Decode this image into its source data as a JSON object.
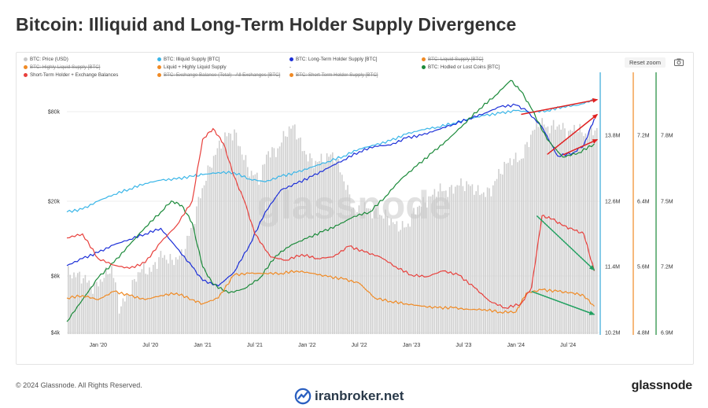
{
  "page": {
    "title": "Bitcoin: Illiquid and Long-Term Holder Supply Divergence",
    "copyright": "© 2024 Glassnode. All Rights Reserved.",
    "brand": "glassnode",
    "watermark": "glassnode",
    "corner_watermark": "iranbroker.net"
  },
  "toolbar": {
    "reset_label": "Reset zoom",
    "camera_icon": "camera-icon"
  },
  "legend": [
    {
      "label": "BTC: Price (USD)",
      "color": "#c8c8c8",
      "enabled": true
    },
    {
      "label": "BTC: Illiquid Supply [BTC]",
      "color": "#3ab6e8",
      "enabled": true
    },
    {
      "label": "BTC: Long-Term Holder Supply [BTC]",
      "color": "#1c2fd8",
      "enabled": true
    },
    {
      "label": "BTC: Liquid Supply [BTC]",
      "color": "#f08a24",
      "enabled": false
    },
    {
      "label": "BTC: Highly Liquid Supply [BTC]",
      "color": "#f08a24",
      "enabled": false
    },
    {
      "label": "Liquid + Highly Liquid Supply",
      "color": "#f08a24",
      "enabled": true
    },
    {
      "label": "-",
      "color": "",
      "enabled": true
    },
    {
      "label": "BTC: Hodled or Lost Coins [BTC]",
      "color": "#1b8a3a",
      "enabled": true
    },
    {
      "label": "Short-Term Holder + Exchange Balances",
      "color": "#e8403c",
      "enabled": true
    },
    {
      "label": "BTC: Exchange Balance (Total) - All Exchanges [BTC]",
      "color": "#f08a24",
      "enabled": false
    },
    {
      "label": "BTC: Short-Term Holder Supply [BTC]",
      "color": "#f08a24",
      "enabled": false
    }
  ],
  "chart_data": {
    "type": "line",
    "x_ticks": [
      "Jan '20",
      "Jul '20",
      "Jan '21",
      "Jul '21",
      "Jan '22",
      "Jul '22",
      "Jan '23",
      "Jul '23",
      "Jan '24",
      "Jul '24"
    ],
    "x_range": [
      "2019-09",
      "2024-10"
    ],
    "price_axis": {
      "ticks": [
        "$80k",
        "$20k",
        "$8k",
        "$4k"
      ],
      "scale": "log"
    },
    "axis_1": {
      "ticks": [
        "13.8M",
        "12.6M",
        "11.4M",
        "10.2M"
      ],
      "color": "#36a8d8"
    },
    "axis_2": {
      "ticks": [
        "7.2M",
        "6.4M",
        "5.6M",
        "4.8M"
      ],
      "color": "#f08a24"
    },
    "axis_3": {
      "ticks": [
        "7.8M",
        "7.5M",
        "7.2M",
        "6.9M"
      ],
      "color": "#1b8a3a"
    },
    "series": [
      {
        "name": "BTC: Price (USD)",
        "color": "#c8c8c8",
        "style": "bars",
        "points": [
          [
            2019.7,
            9000
          ],
          [
            2019.85,
            8500
          ],
          [
            2019.95,
            7300
          ],
          [
            2020.05,
            8500
          ],
          [
            2020.12,
            9700
          ],
          [
            2020.2,
            5500
          ],
          [
            2020.3,
            7000
          ],
          [
            2020.4,
            9500
          ],
          [
            2020.5,
            9200
          ],
          [
            2020.6,
            11500
          ],
          [
            2020.7,
            10500
          ],
          [
            2020.8,
            11500
          ],
          [
            2020.9,
            17000
          ],
          [
            2021.0,
            29000
          ],
          [
            2021.08,
            40000
          ],
          [
            2021.15,
            50000
          ],
          [
            2021.22,
            58000
          ],
          [
            2021.3,
            60000
          ],
          [
            2021.38,
            44000
          ],
          [
            2021.45,
            35000
          ],
          [
            2021.55,
            32000
          ],
          [
            2021.62,
            47000
          ],
          [
            2021.7,
            46000
          ],
          [
            2021.8,
            61000
          ],
          [
            2021.87,
            66000
          ],
          [
            2021.95,
            48000
          ],
          [
            2022.05,
            40000
          ],
          [
            2022.15,
            42000
          ],
          [
            2022.25,
            45000
          ],
          [
            2022.35,
            31000
          ],
          [
            2022.45,
            20000
          ],
          [
            2022.55,
            22000
          ],
          [
            2022.65,
            20000
          ],
          [
            2022.75,
            19500
          ],
          [
            2022.85,
            17000
          ],
          [
            2022.95,
            16700
          ],
          [
            2023.05,
            22000
          ],
          [
            2023.15,
            24000
          ],
          [
            2023.25,
            28000
          ],
          [
            2023.35,
            27000
          ],
          [
            2023.45,
            30000
          ],
          [
            2023.55,
            29500
          ],
          [
            2023.65,
            26500
          ],
          [
            2023.75,
            27000
          ],
          [
            2023.85,
            36000
          ],
          [
            2023.95,
            42000
          ],
          [
            2024.05,
            42000
          ],
          [
            2024.15,
            60000
          ],
          [
            2024.22,
            70000
          ],
          [
            2024.3,
            64000
          ],
          [
            2024.4,
            67000
          ],
          [
            2024.5,
            60000
          ],
          [
            2024.58,
            65000
          ],
          [
            2024.65,
            58000
          ],
          [
            2024.75,
            63000
          ]
        ]
      },
      {
        "name": "BTC: Illiquid Supply [BTC]",
        "color": "#3ab6e8",
        "points": [
          [
            2019.7,
            12.4
          ],
          [
            2019.85,
            12.45
          ],
          [
            2020.0,
            12.6
          ],
          [
            2020.15,
            12.72
          ],
          [
            2020.3,
            12.82
          ],
          [
            2020.45,
            12.92
          ],
          [
            2020.6,
            12.98
          ],
          [
            2020.75,
            13.0
          ],
          [
            2020.9,
            13.05
          ],
          [
            2021.0,
            13.08
          ],
          [
            2021.15,
            13.12
          ],
          [
            2021.3,
            13.12
          ],
          [
            2021.45,
            13.0
          ],
          [
            2021.6,
            12.95
          ],
          [
            2021.75,
            13.05
          ],
          [
            2021.9,
            13.12
          ],
          [
            2022.05,
            13.22
          ],
          [
            2022.2,
            13.32
          ],
          [
            2022.35,
            13.42
          ],
          [
            2022.5,
            13.55
          ],
          [
            2022.65,
            13.62
          ],
          [
            2022.8,
            13.7
          ],
          [
            2022.95,
            13.82
          ],
          [
            2023.1,
            13.9
          ],
          [
            2023.25,
            13.95
          ],
          [
            2023.4,
            14.02
          ],
          [
            2023.55,
            14.1
          ],
          [
            2023.7,
            14.16
          ],
          [
            2023.85,
            14.2
          ],
          [
            2024.0,
            14.25
          ],
          [
            2024.15,
            14.22
          ],
          [
            2024.3,
            14.25
          ],
          [
            2024.45,
            14.32
          ],
          [
            2024.6,
            14.35
          ],
          [
            2024.75,
            14.45
          ]
        ]
      },
      {
        "name": "BTC: Long-Term Holder Supply [BTC]",
        "color": "#1c2fd8",
        "points": [
          [
            2019.7,
            11.42
          ],
          [
            2019.85,
            11.55
          ],
          [
            2020.0,
            11.66
          ],
          [
            2020.15,
            11.8
          ],
          [
            2020.3,
            11.9
          ],
          [
            2020.45,
            12.0
          ],
          [
            2020.6,
            12.1
          ],
          [
            2020.75,
            11.75
          ],
          [
            2020.9,
            11.4
          ],
          [
            2021.0,
            11.15
          ],
          [
            2021.15,
            11.05
          ],
          [
            2021.3,
            11.3
          ],
          [
            2021.45,
            11.8
          ],
          [
            2021.6,
            12.4
          ],
          [
            2021.75,
            12.8
          ],
          [
            2021.9,
            12.92
          ],
          [
            2022.05,
            13.05
          ],
          [
            2022.2,
            13.2
          ],
          [
            2022.35,
            13.35
          ],
          [
            2022.5,
            13.5
          ],
          [
            2022.65,
            13.6
          ],
          [
            2022.8,
            13.62
          ],
          [
            2022.95,
            13.75
          ],
          [
            2023.1,
            13.8
          ],
          [
            2023.25,
            13.9
          ],
          [
            2023.4,
            14.0
          ],
          [
            2023.55,
            14.1
          ],
          [
            2023.7,
            14.2
          ],
          [
            2023.85,
            14.32
          ],
          [
            2024.0,
            14.35
          ],
          [
            2024.1,
            14.25
          ],
          [
            2024.25,
            13.95
          ],
          [
            2024.4,
            13.42
          ],
          [
            2024.55,
            13.48
          ],
          [
            2024.65,
            13.62
          ],
          [
            2024.75,
            14.1
          ]
        ]
      },
      {
        "name": "BTC: Hodled or Lost Coins [BTC]",
        "color": "#1b8a3a",
        "points": [
          [
            2019.7,
            6.95
          ],
          [
            2019.85,
            7.05
          ],
          [
            2020.0,
            7.15
          ],
          [
            2020.15,
            7.22
          ],
          [
            2020.3,
            7.3
          ],
          [
            2020.45,
            7.38
          ],
          [
            2020.6,
            7.45
          ],
          [
            2020.7,
            7.5
          ],
          [
            2020.8,
            7.48
          ],
          [
            2020.9,
            7.4
          ],
          [
            2021.0,
            7.2
          ],
          [
            2021.1,
            7.12
          ],
          [
            2021.25,
            7.08
          ],
          [
            2021.4,
            7.1
          ],
          [
            2021.55,
            7.15
          ],
          [
            2021.7,
            7.25
          ],
          [
            2021.85,
            7.3
          ],
          [
            2022.0,
            7.33
          ],
          [
            2022.15,
            7.36
          ],
          [
            2022.3,
            7.39
          ],
          [
            2022.45,
            7.43
          ],
          [
            2022.6,
            7.45
          ],
          [
            2022.75,
            7.52
          ],
          [
            2022.9,
            7.6
          ],
          [
            2023.05,
            7.66
          ],
          [
            2023.2,
            7.72
          ],
          [
            2023.35,
            7.78
          ],
          [
            2023.5,
            7.85
          ],
          [
            2023.65,
            7.92
          ],
          [
            2023.8,
            7.98
          ],
          [
            2023.95,
            8.05
          ],
          [
            2024.05,
            8.0
          ],
          [
            2024.15,
            7.92
          ],
          [
            2024.3,
            7.78
          ],
          [
            2024.45,
            7.7
          ],
          [
            2024.6,
            7.72
          ],
          [
            2024.75,
            7.76
          ]
        ]
      },
      {
        "name": "Liquid + Highly Liquid Supply",
        "color": "#f08a24",
        "points": [
          [
            2019.7,
            5.22
          ],
          [
            2019.85,
            5.25
          ],
          [
            2020.0,
            5.2
          ],
          [
            2020.15,
            5.3
          ],
          [
            2020.3,
            5.25
          ],
          [
            2020.45,
            5.2
          ],
          [
            2020.6,
            5.25
          ],
          [
            2020.75,
            5.28
          ],
          [
            2020.9,
            5.2
          ],
          [
            2021.0,
            5.15
          ],
          [
            2021.15,
            5.22
          ],
          [
            2021.3,
            5.5
          ],
          [
            2021.45,
            5.52
          ],
          [
            2021.6,
            5.52
          ],
          [
            2021.75,
            5.52
          ],
          [
            2021.9,
            5.55
          ],
          [
            2022.05,
            5.52
          ],
          [
            2022.2,
            5.48
          ],
          [
            2022.35,
            5.45
          ],
          [
            2022.5,
            5.4
          ],
          [
            2022.65,
            5.22
          ],
          [
            2022.8,
            5.18
          ],
          [
            2022.95,
            5.15
          ],
          [
            2023.1,
            5.12
          ],
          [
            2023.25,
            5.1
          ],
          [
            2023.4,
            5.1
          ],
          [
            2023.55,
            5.08
          ],
          [
            2023.7,
            5.08
          ],
          [
            2023.85,
            5.05
          ],
          [
            2024.0,
            5.05
          ],
          [
            2024.1,
            5.28
          ],
          [
            2024.25,
            5.32
          ],
          [
            2024.4,
            5.3
          ],
          [
            2024.55,
            5.28
          ],
          [
            2024.65,
            5.25
          ],
          [
            2024.75,
            5.12
          ]
        ]
      },
      {
        "name": "Short-Term Holder + Exchange Balances",
        "color": "#e8403c",
        "points": [
          [
            2019.7,
            5.95
          ],
          [
            2019.85,
            6.0
          ],
          [
            2020.0,
            5.7
          ],
          [
            2020.15,
            5.62
          ],
          [
            2020.3,
            5.58
          ],
          [
            2020.45,
            5.65
          ],
          [
            2020.6,
            5.9
          ],
          [
            2020.75,
            6.1
          ],
          [
            2020.9,
            6.4
          ],
          [
            2021.0,
            7.15
          ],
          [
            2021.1,
            7.28
          ],
          [
            2021.2,
            7.1
          ],
          [
            2021.3,
            6.7
          ],
          [
            2021.4,
            6.4
          ],
          [
            2021.5,
            6.0
          ],
          [
            2021.65,
            5.72
          ],
          [
            2021.8,
            5.68
          ],
          [
            2021.95,
            5.75
          ],
          [
            2022.1,
            5.7
          ],
          [
            2022.25,
            5.72
          ],
          [
            2022.4,
            5.85
          ],
          [
            2022.55,
            5.78
          ],
          [
            2022.7,
            5.72
          ],
          [
            2022.85,
            5.6
          ],
          [
            2023.0,
            5.5
          ],
          [
            2023.15,
            5.48
          ],
          [
            2023.3,
            5.55
          ],
          [
            2023.45,
            5.5
          ],
          [
            2023.6,
            5.35
          ],
          [
            2023.75,
            5.18
          ],
          [
            2023.9,
            5.1
          ],
          [
            2024.05,
            5.15
          ],
          [
            2024.15,
            5.35
          ],
          [
            2024.25,
            6.22
          ],
          [
            2024.35,
            6.18
          ],
          [
            2024.45,
            6.1
          ],
          [
            2024.55,
            6.05
          ],
          [
            2024.65,
            6.0
          ],
          [
            2024.75,
            5.55
          ]
        ]
      }
    ],
    "annotations": [
      {
        "type": "arrow",
        "color": "#e02020",
        "from": [
          2024.05,
          14.18
        ],
        "to": [
          2024.78,
          14.45
        ],
        "axis": "axis_1"
      },
      {
        "type": "arrow",
        "color": "#e02020",
        "from": [
          2024.3,
          13.45
        ],
        "to": [
          2024.78,
          14.18
        ],
        "axis": "axis_1"
      },
      {
        "type": "arrow",
        "color": "#e02020",
        "from": [
          2024.45,
          7.71
        ],
        "to": [
          2024.78,
          7.78
        ],
        "axis": "axis_3"
      },
      {
        "type": "arrow",
        "color": "#20a060",
        "from": [
          2024.2,
          6.22
        ],
        "to": [
          2024.75,
          5.56
        ],
        "axis": "axis_2"
      },
      {
        "type": "arrow",
        "color": "#20a060",
        "from": [
          2024.15,
          5.3
        ],
        "to": [
          2024.75,
          5.02
        ],
        "axis": "axis_2"
      }
    ]
  }
}
